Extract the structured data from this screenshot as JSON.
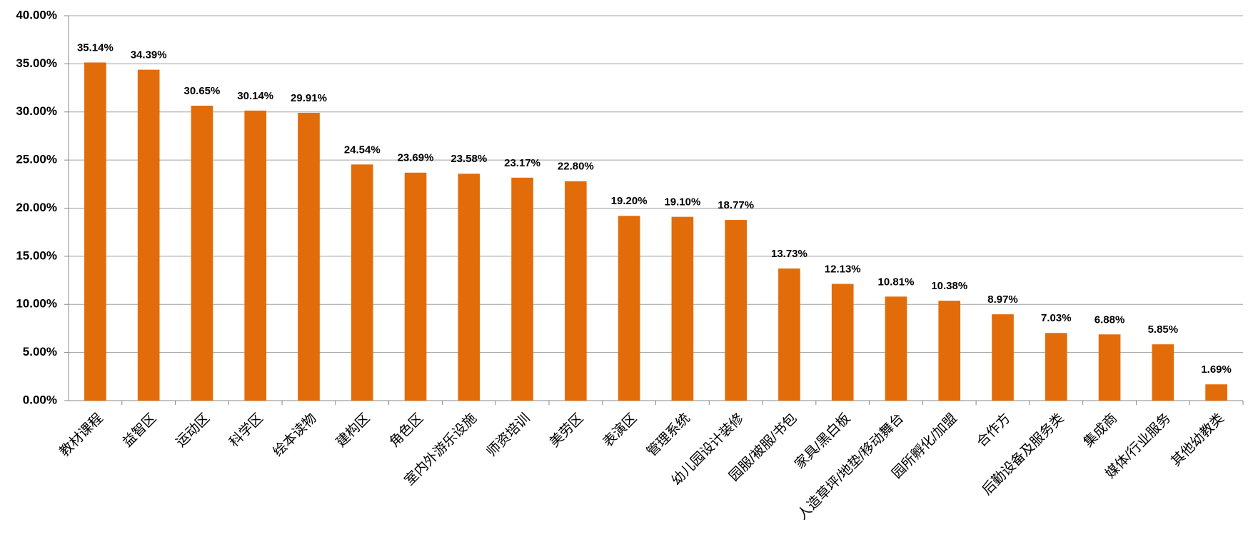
{
  "chart_data": {
    "type": "bar",
    "categories": [
      "教材课程",
      "益智区",
      "运动区",
      "科学区",
      "绘本读物",
      "建构区",
      "角色区",
      "室内外游乐设施",
      "师资培训",
      "美劳区",
      "表演区",
      "管理系统",
      "幼儿园设计装修",
      "园服/被服/书包",
      "家具/黑白板",
      "人造草坪/地垫/移动舞台",
      "园所孵化/加盟",
      "合作方",
      "后勤设备及服务类",
      "集成商",
      "媒体/行业服务",
      "其他幼教类"
    ],
    "values": [
      35.14,
      34.39,
      30.65,
      30.14,
      29.91,
      24.54,
      23.69,
      23.58,
      23.17,
      22.8,
      19.2,
      19.1,
      18.77,
      13.73,
      12.13,
      10.81,
      10.38,
      8.97,
      7.03,
      6.88,
      5.85,
      1.69
    ],
    "value_labels": [
      "35.14%",
      "34.39%",
      "30.65%",
      "30.14%",
      "29.91%",
      "24.54%",
      "23.69%",
      "23.58%",
      "23.17%",
      "22.80%",
      "19.20%",
      "19.10%",
      "18.77%",
      "13.73%",
      "12.13%",
      "10.81%",
      "10.38%",
      "8.97%",
      "7.03%",
      "6.88%",
      "5.85%",
      "1.69%"
    ],
    "color": "#e36c0a",
    "ylim": [
      0,
      40
    ],
    "yticks": [
      {
        "value": 0,
        "label": "0.00%"
      },
      {
        "value": 5,
        "label": "5.00%"
      },
      {
        "value": 10,
        "label": "10.00%"
      },
      {
        "value": 15,
        "label": "15.00%"
      },
      {
        "value": 20,
        "label": "20.00%"
      },
      {
        "value": 25,
        "label": "25.00%"
      },
      {
        "value": 30,
        "label": "30.00%"
      },
      {
        "value": 35,
        "label": "35.00%"
      },
      {
        "value": 40,
        "label": "40.00%"
      }
    ],
    "grid": true
  }
}
